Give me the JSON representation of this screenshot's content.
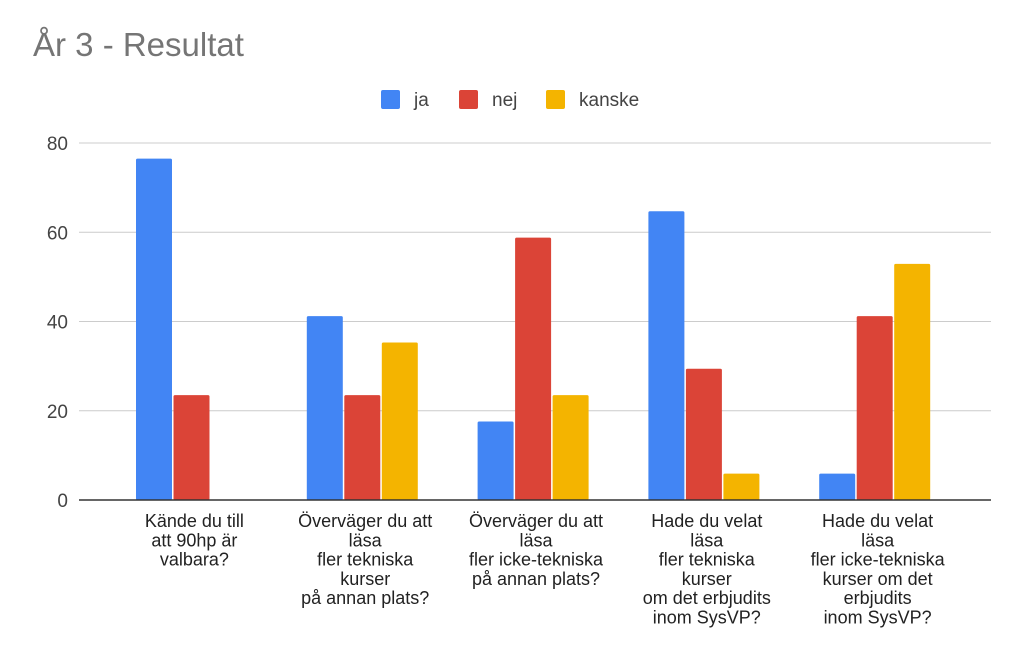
{
  "chart_data": {
    "type": "bar",
    "title": "År 3 - Resultat",
    "xlabel": "",
    "ylabel": "",
    "ylim": [
      0,
      80
    ],
    "yticks": [
      0,
      20,
      40,
      60,
      80
    ],
    "grid": true,
    "legend_position": "top-center",
    "categories": [
      [
        "Kände du till",
        "att 90hp är",
        "valbara?"
      ],
      [
        "Överväger du att",
        "läsa",
        "fler tekniska",
        "kurser",
        "på annan plats?"
      ],
      [
        "Överväger du att",
        "läsa",
        "fler icke-tekniska",
        "på annan plats?"
      ],
      [
        "Hade du velat",
        "läsa",
        "fler tekniska",
        "kurser",
        "om det erbjudits",
        "inom SysVP?"
      ],
      [
        "Hade du velat",
        "läsa",
        "fler icke-tekniska",
        "kurser om det",
        "erbjudits",
        "inom SysVP?"
      ]
    ],
    "series": [
      {
        "name": "ja",
        "color": "#4285f4",
        "values": [
          76.5,
          41.2,
          17.6,
          64.7,
          5.9
        ]
      },
      {
        "name": "nej",
        "color": "#db4437",
        "values": [
          23.5,
          23.5,
          58.8,
          29.4,
          41.2
        ]
      },
      {
        "name": "kanske",
        "color": "#f4b400",
        "values": [
          0,
          35.3,
          23.5,
          5.9,
          52.9
        ]
      }
    ]
  }
}
